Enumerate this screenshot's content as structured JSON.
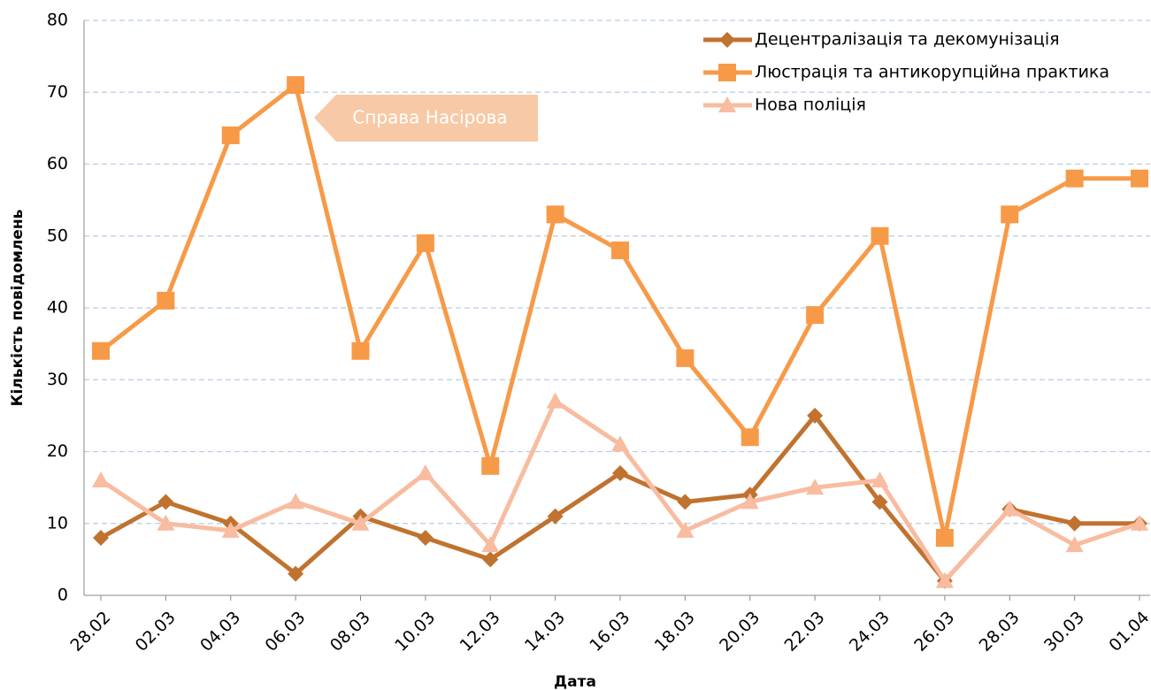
{
  "chart_data": {
    "type": "line",
    "annotation": "Справа  Насірова",
    "x_label": "Дата",
    "y_label": "Кількість повідомлень",
    "categories": [
      "28.02",
      "02.03",
      "04.03",
      "06.03",
      "08.03",
      "10.03",
      "12.03",
      "14.03",
      "16.03",
      "18.03",
      "20.03",
      "22.03",
      "24.03",
      "26.03",
      "28.03",
      "30.03",
      "01.04"
    ],
    "series": [
      {
        "name": "Децентралізація та декомунізація",
        "color": "#c0722f",
        "marker": "diamond",
        "values": [
          8,
          13,
          10,
          3,
          11,
          8,
          5,
          11,
          17,
          13,
          14,
          25,
          13,
          2,
          12,
          10,
          10
        ]
      },
      {
        "name": "Люстрація та антикорупційна практика",
        "color": "#f79a48",
        "marker": "square",
        "values": [
          34,
          41,
          64,
          71,
          34,
          49,
          18,
          53,
          48,
          33,
          22,
          39,
          50,
          8,
          53,
          58,
          58
        ]
      },
      {
        "name": "Нова поліція",
        "color": "#f8bca0",
        "marker": "triangle",
        "values": [
          16,
          10,
          9,
          13,
          10,
          17,
          7,
          27,
          21,
          9,
          13,
          15,
          16,
          2,
          12,
          7,
          10
        ]
      }
    ],
    "ylim": [
      0,
      80
    ],
    "yticks": [
      0,
      10,
      20,
      30,
      40,
      50,
      60,
      70,
      80
    ],
    "grid": true,
    "legend": "upper right"
  }
}
